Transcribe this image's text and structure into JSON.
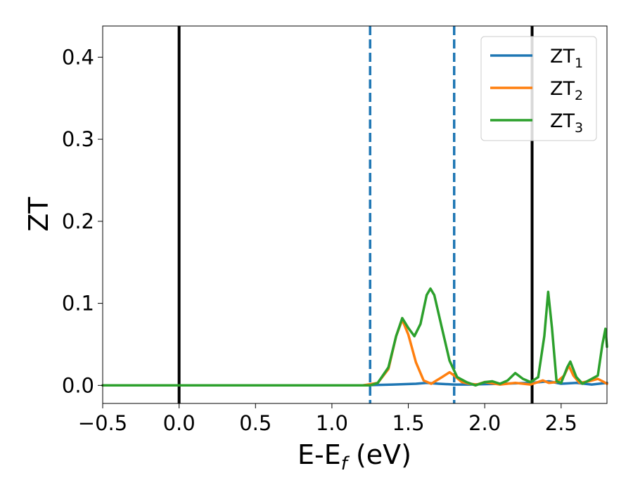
{
  "chart_data": {
    "type": "line",
    "xlabel": "E-E",
    "xlabel_sub": "f",
    "xlabel_unit": " (eV)",
    "ylabel": "ZT",
    "xlim": [
      -0.5,
      2.8
    ],
    "ylim": [
      -0.022,
      0.438
    ],
    "xticks": [
      -0.5,
      0.0,
      0.5,
      1.0,
      1.5,
      2.0,
      2.5
    ],
    "xtick_labels": [
      "−0.5",
      "0.0",
      "0.5",
      "1.0",
      "1.5",
      "2.0",
      "2.5"
    ],
    "yticks": [
      0.0,
      0.1,
      0.2,
      0.3,
      0.4
    ],
    "ytick_labels": [
      "0.0",
      "0.1",
      "0.2",
      "0.3",
      "0.4"
    ],
    "grid": false,
    "legend_position": "top-right",
    "vlines": [
      {
        "x": 0.0,
        "style": "solid",
        "color": "#000000"
      },
      {
        "x": 2.31,
        "style": "solid",
        "color": "#000000"
      },
      {
        "x": 1.25,
        "style": "dashed",
        "color": "#1f77b4"
      },
      {
        "x": 1.8,
        "style": "dashed",
        "color": "#1f77b4"
      }
    ],
    "series": [
      {
        "base": "ZT",
        "sub": "1",
        "color": "#1f77b4",
        "points": [
          [
            -0.5,
            0
          ],
          [
            1.2,
            0
          ],
          [
            1.4,
            0.001
          ],
          [
            1.55,
            0.002
          ],
          [
            1.62,
            0.003
          ],
          [
            1.7,
            0.002
          ],
          [
            1.8,
            0.001
          ],
          [
            1.9,
            0.001
          ],
          [
            2.1,
            0.002
          ],
          [
            2.3,
            0.003
          ],
          [
            2.42,
            0.005
          ],
          [
            2.5,
            0.002
          ],
          [
            2.6,
            0.003
          ],
          [
            2.7,
            0.001
          ],
          [
            2.8,
            0.003
          ]
        ]
      },
      {
        "base": "ZT",
        "sub": "2",
        "color": "#ff7f0e",
        "points": [
          [
            -0.5,
            0
          ],
          [
            1.2,
            0
          ],
          [
            1.3,
            0.003
          ],
          [
            1.37,
            0.02
          ],
          [
            1.42,
            0.06
          ],
          [
            1.46,
            0.08
          ],
          [
            1.5,
            0.062
          ],
          [
            1.55,
            0.028
          ],
          [
            1.6,
            0.006
          ],
          [
            1.65,
            0.002
          ],
          [
            1.72,
            0.01
          ],
          [
            1.77,
            0.016
          ],
          [
            1.8,
            0.012
          ],
          [
            1.85,
            0.004
          ],
          [
            1.9,
            0.002
          ],
          [
            1.95,
            0.001
          ],
          [
            2.0,
            0.004
          ],
          [
            2.1,
            0.001
          ],
          [
            2.2,
            0.003
          ],
          [
            2.3,
            0.001
          ],
          [
            2.38,
            0.006
          ],
          [
            2.42,
            0.003
          ],
          [
            2.47,
            0.004
          ],
          [
            2.52,
            0.012
          ],
          [
            2.55,
            0.024
          ],
          [
            2.58,
            0.012
          ],
          [
            2.62,
            0.003
          ],
          [
            2.68,
            0.005
          ],
          [
            2.74,
            0.008
          ],
          [
            2.78,
            0.004
          ],
          [
            2.8,
            0.002
          ]
        ]
      },
      {
        "base": "ZT",
        "sub": "3",
        "color": "#2ca02c",
        "points": [
          [
            -0.5,
            0
          ],
          [
            1.25,
            0
          ],
          [
            1.3,
            0.003
          ],
          [
            1.37,
            0.022
          ],
          [
            1.42,
            0.06
          ],
          [
            1.46,
            0.082
          ],
          [
            1.5,
            0.07
          ],
          [
            1.54,
            0.06
          ],
          [
            1.58,
            0.075
          ],
          [
            1.62,
            0.11
          ],
          [
            1.645,
            0.118
          ],
          [
            1.67,
            0.11
          ],
          [
            1.72,
            0.07
          ],
          [
            1.77,
            0.03
          ],
          [
            1.82,
            0.01
          ],
          [
            1.88,
            0.004
          ],
          [
            1.94,
            0.0
          ],
          [
            2.0,
            0.004
          ],
          [
            2.05,
            0.005
          ],
          [
            2.1,
            0.002
          ],
          [
            2.15,
            0.006
          ],
          [
            2.2,
            0.015
          ],
          [
            2.25,
            0.008
          ],
          [
            2.3,
            0.004
          ],
          [
            2.35,
            0.01
          ],
          [
            2.39,
            0.06
          ],
          [
            2.415,
            0.114
          ],
          [
            2.44,
            0.07
          ],
          [
            2.47,
            0.005
          ],
          [
            2.5,
            0.003
          ],
          [
            2.54,
            0.022
          ],
          [
            2.56,
            0.029
          ],
          [
            2.6,
            0.01
          ],
          [
            2.64,
            0.002
          ],
          [
            2.7,
            0.008
          ],
          [
            2.74,
            0.012
          ],
          [
            2.77,
            0.05
          ],
          [
            2.79,
            0.069
          ],
          [
            2.8,
            0.047
          ]
        ]
      }
    ]
  }
}
